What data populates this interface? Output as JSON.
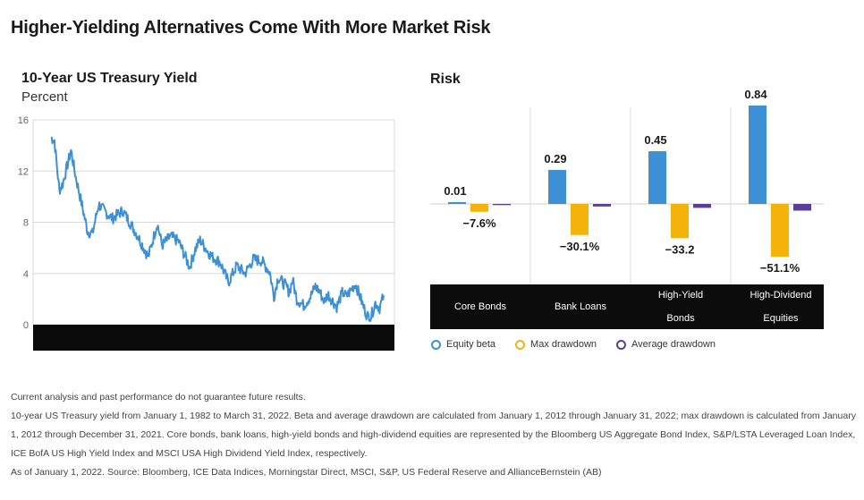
{
  "title": "Higher-Yielding Alternatives Come With More Market Risk",
  "left_panel": {
    "title": "10-Year US Treasury Yield",
    "subtitle": "Percent"
  },
  "right_panel": {
    "title": "Risk"
  },
  "legend": [
    {
      "label": "Equity beta",
      "color": "#3d8fd6"
    },
    {
      "label": "Max drawdown",
      "color": "#f5b20a"
    },
    {
      "label": "Average drawdown",
      "color": "#5a3d99"
    }
  ],
  "notes": [
    "Current analysis and past performance do not guarantee future results.",
    "10-year US Treasury yield from January 1, 1982 to March 31, 2022. Beta and average drawdown are calculated from January 1, 2012 through January 31, 2022; max drawdown is calculated from January 1, 2012 through December 31, 2021. Core bonds, bank loans, high-yield bonds and high-dividend equities are represented by the Bloomberg US Aggregate Bond Index, S&P/LSTA Leveraged Loan Index, ICE BofA US High Yield Index and MSCI USA High Dividend Yield Index, respectively.",
    "As of January 1, 2022. Source: Bloomberg, ICE Data Indices, Morningstar Direct, MSCI, S&P, US Federal Reserve and AllianceBernstein (AB)"
  ],
  "chart_data": [
    {
      "type": "line",
      "title": "10-Year US Treasury Yield",
      "ylabel": "Percent",
      "ylim": [
        0,
        16
      ],
      "yticks": [
        "0",
        "4",
        "8",
        "12",
        "16"
      ],
      "grid": "horizontal",
      "color": "#3d8fd6",
      "series": [
        {
          "x": [
            "1982-01",
            "1982-06",
            "1983-01",
            "1983-06",
            "1984-06",
            "1985-01",
            "1985-06",
            "1986-06",
            "1987-01",
            "1987-10",
            "1988-06",
            "1989-06",
            "1990-09",
            "1991-06",
            "1992-06",
            "1993-10",
            "1994-11",
            "1995-06",
            "1996-06",
            "1997-06",
            "1998-10",
            "1999-06",
            "2000-01",
            "2000-06",
            "2001-06",
            "2002-06",
            "2003-06",
            "2004-06",
            "2005-06",
            "2006-06",
            "2007-06",
            "2008-06",
            "2008-12",
            "2009-06",
            "2010-06",
            "2010-10",
            "2011-03",
            "2011-09",
            "2012-07",
            "2013-05",
            "2013-12",
            "2014-06",
            "2015-01",
            "2015-06",
            "2016-07",
            "2017-03",
            "2017-09",
            "2018-10",
            "2019-06",
            "2019-09",
            "2020-03",
            "2020-08",
            "2021-03",
            "2021-09",
            "2022-03"
          ],
          "values": [
            14.6,
            14.4,
            10.5,
            11.0,
            13.6,
            11.5,
            10.3,
            7.3,
            7.1,
            9.4,
            8.9,
            8.3,
            8.9,
            8.1,
            7.0,
            5.3,
            7.9,
            6.2,
            6.9,
            6.5,
            4.5,
            5.9,
            6.6,
            6.2,
            5.3,
            4.9,
            3.3,
            4.6,
            4.0,
            5.1,
            5.0,
            4.1,
            2.2,
            3.7,
            3.0,
            2.5,
            3.5,
            2.0,
            1.5,
            2.2,
            3.0,
            2.6,
            1.8,
            2.4,
            1.4,
            2.5,
            2.2,
            3.2,
            2.0,
            1.5,
            0.7,
            0.55,
            1.7,
            1.3,
            2.3
          ]
        }
      ]
    },
    {
      "type": "bar",
      "title": "Risk",
      "categories": [
        "Core Bonds",
        "Bank Loans",
        "High-Yield Bonds",
        "High-Dividend Equities"
      ],
      "series": [
        {
          "name": "Equity beta",
          "values": [
            0.01,
            0.29,
            0.45,
            0.84
          ],
          "labels": [
            "0.01",
            "0.29",
            "0.45",
            "0.84"
          ],
          "color": "#3d8fd6"
        },
        {
          "name": "Max drawdown",
          "values": [
            -7.6,
            -30.1,
            -33.2,
            -51.1
          ],
          "labels": [
            "−7.6%",
            "−30.1%",
            "−33.2",
            "−51.1%"
          ],
          "color": "#f5b20a"
        },
        {
          "name": "Average drawdown",
          "values": [
            -1.2,
            -2.6,
            -4.0,
            -6.8
          ],
          "labels": [],
          "color": "#5a3d99"
        }
      ]
    }
  ]
}
